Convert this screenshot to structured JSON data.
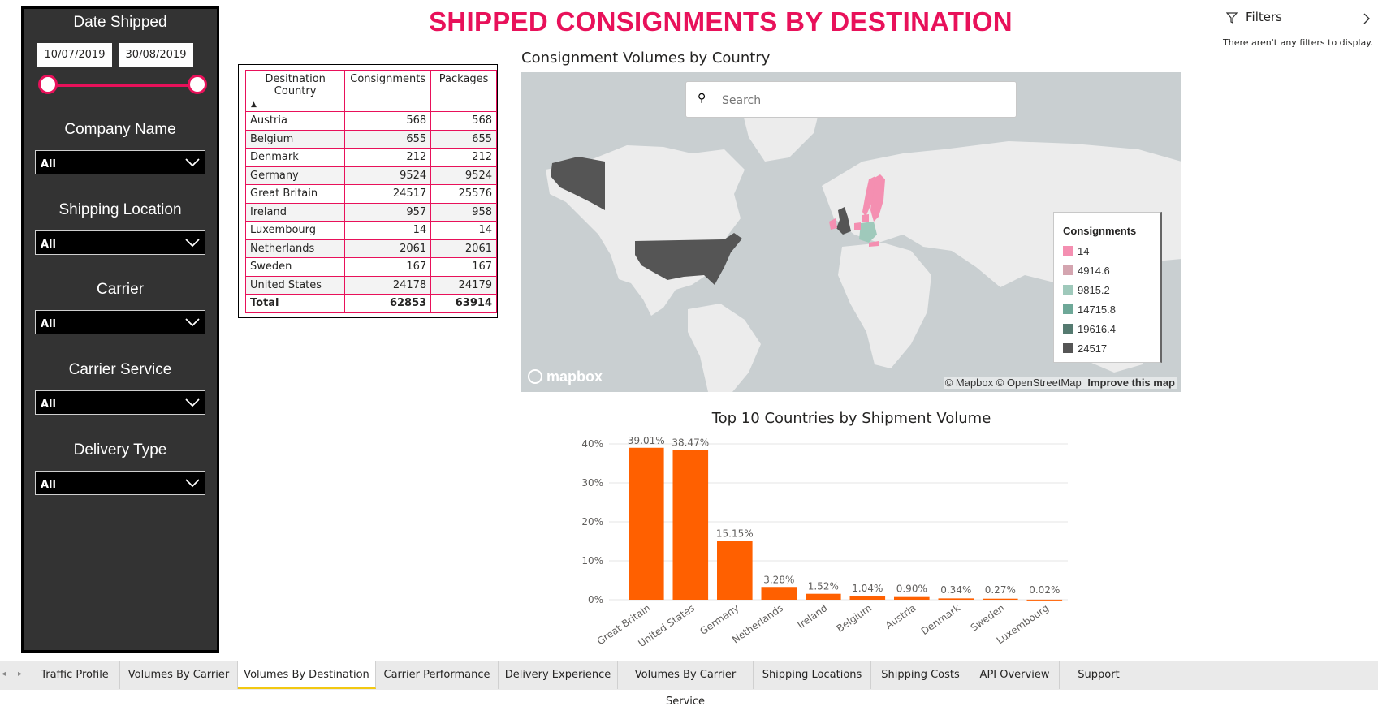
{
  "title": "SHIPPED CONSIGNMENTS BY DESTINATION",
  "colors": {
    "accent": "#e8115a",
    "bar": "#ff6000",
    "panel": "#333333"
  },
  "slicers": {
    "date": {
      "title": "Date Shipped",
      "start": "10/07/2019",
      "end": "30/08/2019"
    },
    "company": {
      "title": "Company Name",
      "value": "All"
    },
    "shipping_location": {
      "title": "Shipping Location",
      "value": "All"
    },
    "carrier": {
      "title": "Carrier",
      "value": "All"
    },
    "carrier_service": {
      "title": "Carrier Service",
      "value": "All"
    },
    "delivery_type": {
      "title": "Delivery Type",
      "value": "All"
    }
  },
  "table": {
    "headers": [
      "Desitnation Country",
      "Consignments",
      "Packages"
    ],
    "rows": [
      [
        "Austria",
        "568",
        "568"
      ],
      [
        "Belgium",
        "655",
        "655"
      ],
      [
        "Denmark",
        "212",
        "212"
      ],
      [
        "Germany",
        "9524",
        "9524"
      ],
      [
        "Great Britain",
        "24517",
        "25576"
      ],
      [
        "Ireland",
        "957",
        "958"
      ],
      [
        "Luxembourg",
        "14",
        "14"
      ],
      [
        "Netherlands",
        "2061",
        "2061"
      ],
      [
        "Sweden",
        "167",
        "167"
      ],
      [
        "United States",
        "24178",
        "24179"
      ]
    ],
    "total": [
      "Total",
      "62853",
      "63914"
    ]
  },
  "map": {
    "title": "Consignment Volumes by Country",
    "search_placeholder": "Search",
    "legend_title": "Consignments",
    "legend": [
      {
        "label": "14",
        "color": "#f48fb1"
      },
      {
        "label": "4914.6",
        "color": "#d4a5b0"
      },
      {
        "label": "9815.2",
        "color": "#9fc9bb"
      },
      {
        "label": "14715.8",
        "color": "#6ea898"
      },
      {
        "label": "19616.4",
        "color": "#557a70"
      },
      {
        "label": "24517",
        "color": "#555555"
      }
    ],
    "attribution": "© Mapbox © OpenStreetMap",
    "improve_link": "Improve this map",
    "logo_text": "mapbox"
  },
  "chart_data": {
    "type": "bar",
    "title": "Top 10 Countries by Shipment Volume",
    "categories": [
      "Great Britain",
      "United States",
      "Germany",
      "Netherlands",
      "Ireland",
      "Belgium",
      "Austria",
      "Denmark",
      "Sweden",
      "Luxembourg"
    ],
    "values": [
      39.01,
      38.47,
      15.15,
      3.28,
      1.52,
      1.04,
      0.9,
      0.34,
      0.27,
      0.02
    ],
    "labels": [
      "39.01%",
      "38.47%",
      "15.15%",
      "3.28%",
      "1.52%",
      "1.04%",
      "0.90%",
      "0.34%",
      "0.27%",
      "0.02%"
    ],
    "yticks": [
      "0%",
      "10%",
      "20%",
      "30%",
      "40%"
    ],
    "ylim": [
      0,
      40
    ],
    "grid": true,
    "color": "#ff6000"
  },
  "filters": {
    "title": "Filters",
    "empty_text": "There aren't any filters to display."
  },
  "tabs": [
    {
      "label": "Traffic Profile",
      "active": false
    },
    {
      "label": "Volumes By Carrier",
      "active": false
    },
    {
      "label": "Volumes By Destination",
      "active": true
    },
    {
      "label": "Carrier Performance",
      "active": false
    },
    {
      "label": "Delivery Experience",
      "active": false
    },
    {
      "label": "Volumes By Carrier Service",
      "active": false
    },
    {
      "label": "Shipping Locations",
      "active": false
    },
    {
      "label": "Shipping Costs",
      "active": false
    },
    {
      "label": "API Overview",
      "active": false
    },
    {
      "label": "Support",
      "active": false
    }
  ]
}
